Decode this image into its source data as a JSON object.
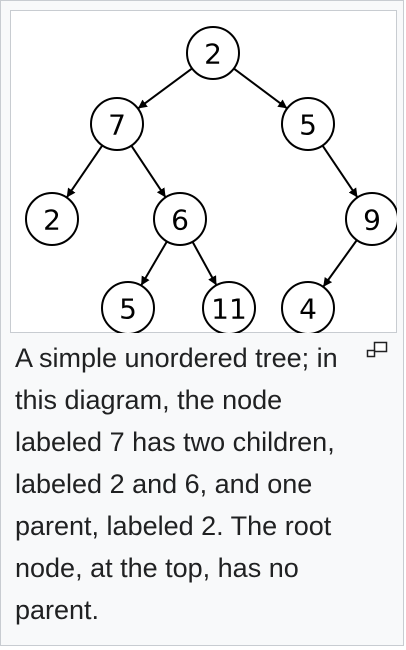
{
  "diagram": {
    "nodes": [
      {
        "id": "root",
        "label": "2"
      },
      {
        "id": "n7",
        "label": "7"
      },
      {
        "id": "n5",
        "label": "5"
      },
      {
        "id": "n2",
        "label": "2"
      },
      {
        "id": "n6",
        "label": "6"
      },
      {
        "id": "n9",
        "label": "9"
      },
      {
        "id": "n5b",
        "label": "5"
      },
      {
        "id": "n11",
        "label": "11"
      },
      {
        "id": "n4",
        "label": "4"
      }
    ],
    "edges": [
      {
        "from": "root",
        "to": "n7"
      },
      {
        "from": "root",
        "to": "n5"
      },
      {
        "from": "n7",
        "to": "n2"
      },
      {
        "from": "n7",
        "to": "n6"
      },
      {
        "from": "n5",
        "to": "n9"
      },
      {
        "from": "n6",
        "to": "n5b"
      },
      {
        "from": "n6",
        "to": "n11"
      },
      {
        "from": "n9",
        "to": "n4"
      }
    ]
  },
  "caption": {
    "text": "A simple unordered tree; in this diagram, the node labeled 7 has two children, labeled 2 and 6, and one parent, labeled 2. The root node, at the top, has no parent."
  },
  "icons": {
    "enlarge": "magnify-icon"
  },
  "colors": {
    "frame_border": "#c8ccd1",
    "thumb_background": "#f8f9fa",
    "text": "#202122"
  }
}
